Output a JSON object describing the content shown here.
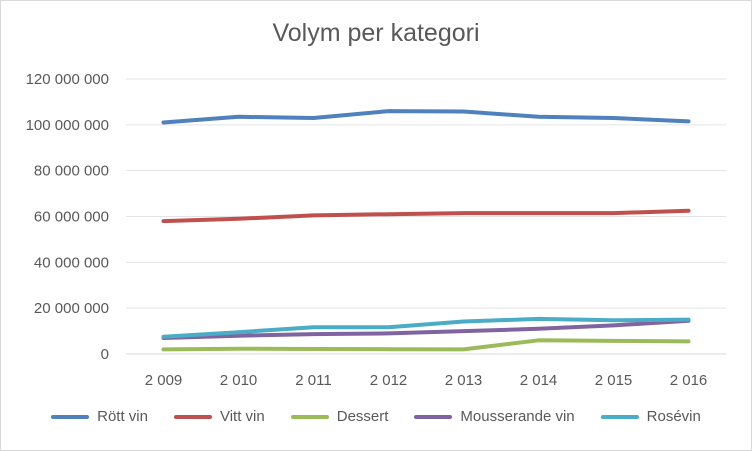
{
  "chart_data": {
    "type": "line",
    "title": "Volym per kategori",
    "xlabel": "",
    "ylabel": "",
    "categories": [
      "2 009",
      "2 010",
      "2 011",
      "2 012",
      "2 013",
      "2 014",
      "2 015",
      "2 016"
    ],
    "ylim": [
      0,
      120000000
    ],
    "yticks": [
      0,
      20000000,
      40000000,
      60000000,
      80000000,
      100000000,
      120000000
    ],
    "ytick_labels": [
      "0",
      "20 000 000",
      "40 000 000",
      "60 000 000",
      "80 000 000",
      "100 000 000",
      "120 000 000"
    ],
    "grid": true,
    "legend_position": "bottom",
    "series": [
      {
        "name": "Rött vin",
        "color": "#4f81bd",
        "values": [
          101000000,
          103500000,
          103000000,
          106000000,
          105800000,
          103500000,
          103000000,
          101500000
        ]
      },
      {
        "name": "Vitt vin",
        "color": "#c0504d",
        "values": [
          58000000,
          59000000,
          60500000,
          61000000,
          61500000,
          61500000,
          61500000,
          62500000
        ]
      },
      {
        "name": "Dessert",
        "color": "#9bbb59",
        "values": [
          2000000,
          2300000,
          2200000,
          2100000,
          2000000,
          6000000,
          5700000,
          5500000
        ]
      },
      {
        "name": "Mousserande vin",
        "color": "#8064a2",
        "values": [
          7000000,
          8000000,
          8700000,
          9000000,
          10000000,
          11000000,
          12500000,
          14500000
        ]
      },
      {
        "name": "Rosévin",
        "color": "#4bacc6",
        "values": [
          7500000,
          9500000,
          11700000,
          11700000,
          14200000,
          15300000,
          14700000,
          15000000
        ]
      }
    ]
  }
}
